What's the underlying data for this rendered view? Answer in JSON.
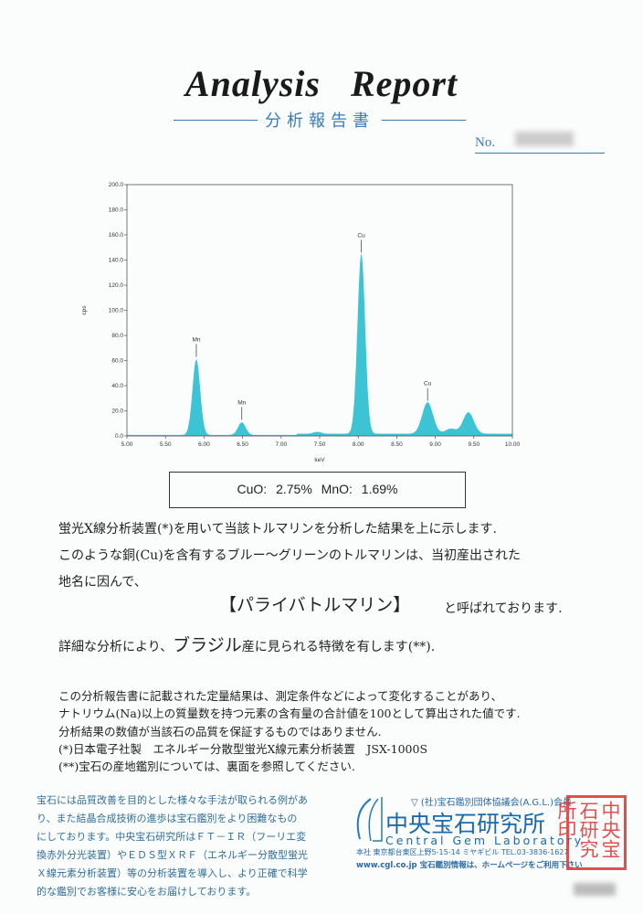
{
  "header": {
    "title": "Analysis Report",
    "subtitle": "分析報告書",
    "no_label": "No."
  },
  "chart_data": {
    "type": "area",
    "xlabel": "keV",
    "ylabel": "cps",
    "xlim": [
      5.0,
      10.0
    ],
    "ylim": [
      0,
      200
    ],
    "xticks": [
      "5.00",
      "5.50",
      "6.00",
      "6.50",
      "7.00",
      "7.50",
      "8.00",
      "8.50",
      "9.00",
      "9.50",
      "10.00"
    ],
    "yticks": [
      "0.0",
      "20.0",
      "40.0",
      "60.0",
      "80.0",
      "100.0",
      "120.0",
      "140.0",
      "160.0",
      "180.0",
      "200.0"
    ],
    "grid": false,
    "color": "#3cc4d4",
    "peaks": [
      {
        "label": "Mn",
        "x": 5.9,
        "y": 60
      },
      {
        "label": "Mn",
        "x": 6.49,
        "y": 10
      },
      {
        "label": "",
        "x": 7.47,
        "y": 1.5
      },
      {
        "label": "Cu",
        "x": 8.04,
        "y": 143
      },
      {
        "label": "Cu",
        "x": 8.9,
        "y": 25
      },
      {
        "label": "",
        "x": 9.2,
        "y": 4
      },
      {
        "label": "",
        "x": 9.43,
        "y": 17
      }
    ]
  },
  "result": "CuO: 2.75%   MnO: 1.69%",
  "body": {
    "line1": "蛍光X線分析装置(*)を用いて当該トルマリンを分析した結果を上に示します.",
    "line2": "このような銅(Cu)を含有するブルー〜グリーンのトルマリンは、当初産出された",
    "line3": "地名に因んで、",
    "name": "【パライバトルマリン】",
    "line4": "と呼ばれております.",
    "line5a": "詳細な分析により、",
    "origin": "ブラジル",
    "line5b": "産に見られる特徴を有します(**)."
  },
  "notes": [
    "この分析報告書に記載された定量結果は、測定条件などによって変化することがあり、",
    "ナトリウム(Na)以上の質量数を持つ元素の含有量の合計値を100として算出された値です.",
    "分析結果の数値が当該石の品質を保証するものではありません.",
    "(*)日本電子社製　エネルギー分散型蛍光X線元素分析装置　JSX-1000S",
    "(**)宝石の産地鑑別については、裏面を参照してください."
  ],
  "footer": {
    "side": [
      "宝石には品質改善を目的とした様々な手法が取られる例があ",
      "り、また結晶合成技術の進歩は宝石鑑別をより困難なもの",
      "にしております。中央宝石研究所はＦＴ－ＩＲ（フーリエ変",
      "換赤外分光装置）やＥＤＳ型ＸＲＦ（エネルギー分散型蛍光",
      "Ｘ線元素分析装置）等の分析装置を導入し、より正確で科学",
      "的な鑑別でお客様に安心をお届けしております。"
    ],
    "agl": "(社)宝石鑑別団体協議会(A.G.L.)会員",
    "lab_ja": "中央宝石研究所",
    "lab_en": "Central Gem Laboratory",
    "address": "本社 東京都台東区上野5-15-14 ミヤギビル TEL.03-3836-1627",
    "web": "www.cgl.co.jp  宝石鑑別情報は、ホームページをご利用下さい",
    "logo": "CGL",
    "seal": "中央宝石研究所印"
  }
}
